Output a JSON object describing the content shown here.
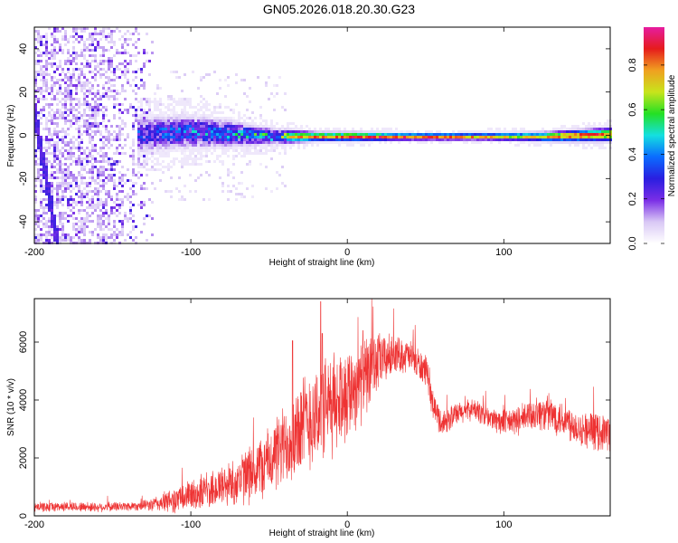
{
  "title": "GN05.2026.018.20.30.G23",
  "colors": {
    "snr_line": "#ee3333",
    "spectrogram_low": "#7a2ee6",
    "background": "#ffffff",
    "axis": "#000000"
  },
  "colorbar": {
    "label": "Normalized spectral amplitude",
    "range": [
      0,
      0.97
    ],
    "ticks": [
      0.0,
      0.2,
      0.4,
      0.6,
      0.8
    ],
    "tick_labels": [
      "0.0",
      "0.2",
      "0.4",
      "0.6",
      "0.8"
    ],
    "colormap": [
      "#ffffff",
      "#d9c8f5",
      "#7a2ee6",
      "#2a1ee0",
      "#0a6cff",
      "#14e0e0",
      "#24e024",
      "#c8e41c",
      "#f0a020",
      "#e61c1c",
      "#e61ca0"
    ]
  },
  "chart_data": [
    {
      "type": "heatmap",
      "name": "spectrogram",
      "xlabel": "Height of straight line (km)",
      "ylabel": "Frequency (Hz)",
      "xlim": [
        -200,
        168
      ],
      "ylim": [
        -50,
        50
      ],
      "xticks": [
        -200,
        -100,
        0,
        100
      ],
      "xtick_labels": [
        "-200",
        "-100",
        "0",
        "100"
      ],
      "yticks": [
        -40,
        -20,
        0,
        20,
        40
      ],
      "ytick_labels": [
        "-40",
        "-20",
        "0",
        "20",
        "40"
      ],
      "grid": false,
      "features": {
        "broadband_noise_x": [
          -200,
          -125
        ],
        "signal_band_centre_hz": [
          [
            -130,
            1
          ],
          [
            -110,
            2
          ],
          [
            -90,
            2
          ],
          [
            -70,
            1
          ],
          [
            -50,
            0
          ],
          [
            -30,
            0
          ],
          [
            -10,
            0
          ],
          [
            10,
            0
          ],
          [
            30,
            0
          ],
          [
            50,
            0
          ],
          [
            70,
            0
          ],
          [
            90,
            0
          ],
          [
            110,
            0
          ],
          [
            130,
            0
          ],
          [
            150,
            0.5
          ],
          [
            168,
            1
          ]
        ],
        "signal_band_halfwidth_hz": [
          [
            -130,
            8
          ],
          [
            -100,
            7
          ],
          [
            -80,
            6
          ],
          [
            -60,
            4
          ],
          [
            -40,
            3
          ],
          [
            -20,
            2
          ],
          [
            0,
            2
          ],
          [
            40,
            1.5
          ],
          [
            80,
            1.5
          ],
          [
            120,
            2
          ],
          [
            168,
            3
          ]
        ],
        "signal_peak_amplitude": [
          [
            -130,
            0.35
          ],
          [
            -110,
            0.4
          ],
          [
            -90,
            0.45
          ],
          [
            -70,
            0.5
          ],
          [
            -50,
            0.6
          ],
          [
            -30,
            0.8
          ],
          [
            -10,
            0.85
          ],
          [
            10,
            0.9
          ],
          [
            30,
            0.9
          ],
          [
            50,
            0.9
          ],
          [
            70,
            0.85
          ],
          [
            90,
            0.75
          ],
          [
            110,
            0.7
          ],
          [
            130,
            0.8
          ],
          [
            150,
            0.9
          ],
          [
            168,
            0.85
          ]
        ],
        "diagonal_trace": [
          [
            -210,
            50
          ],
          [
            -186,
            -50
          ]
        ]
      }
    },
    {
      "type": "line",
      "name": "snr",
      "xlabel": "Height of straight line (km)",
      "ylabel": "SNR (10 * v/v)",
      "xlim": [
        -200,
        168
      ],
      "ylim": [
        0,
        7500
      ],
      "xticks": [
        -200,
        -100,
        0,
        100
      ],
      "xtick_labels": [
        "-200",
        "-100",
        "0",
        "100"
      ],
      "yticks": [
        0,
        2000,
        4000,
        6000
      ],
      "ytick_labels": [
        "0",
        "2000",
        "4000",
        "6000"
      ],
      "grid": false,
      "series": [
        {
          "name": "SNR",
          "color": "#ee3333",
          "envelope": [
            [
              -200,
              300
            ],
            [
              -180,
              320
            ],
            [
              -160,
              300
            ],
            [
              -140,
              330
            ],
            [
              -125,
              380
            ],
            [
              -110,
              550
            ],
            [
              -90,
              850
            ],
            [
              -70,
              1200
            ],
            [
              -60,
              1500
            ],
            [
              -50,
              1900
            ],
            [
              -40,
              2400
            ],
            [
              -30,
              3100
            ],
            [
              -20,
              3500
            ],
            [
              -10,
              3800
            ],
            [
              0,
              4300
            ],
            [
              10,
              4700
            ],
            [
              20,
              5300
            ],
            [
              30,
              5600
            ],
            [
              40,
              5500
            ],
            [
              50,
              5000
            ],
            [
              55,
              3800
            ],
            [
              60,
              3200
            ],
            [
              70,
              3500
            ],
            [
              80,
              3700
            ],
            [
              90,
              3400
            ],
            [
              100,
              3200
            ],
            [
              110,
              3300
            ],
            [
              120,
              3550
            ],
            [
              130,
              3500
            ],
            [
              140,
              3300
            ],
            [
              150,
              3000
            ],
            [
              160,
              2900
            ],
            [
              168,
              2900
            ]
          ],
          "noise_amplitude": [
            [
              -200,
              180
            ],
            [
              -130,
              180
            ],
            [
              -110,
              500
            ],
            [
              -80,
              800
            ],
            [
              -50,
              1300
            ],
            [
              -30,
              1900
            ],
            [
              -10,
              2000
            ],
            [
              10,
              1600
            ],
            [
              30,
              700
            ],
            [
              50,
              600
            ],
            [
              60,
              500
            ],
            [
              80,
              400
            ],
            [
              100,
              500
            ],
            [
              130,
              700
            ],
            [
              168,
              700
            ]
          ],
          "spikes": [
            [
              -17,
              7400
            ],
            [
              -16,
              6300
            ],
            [
              10,
              6400
            ],
            [
              -35,
              6050
            ]
          ]
        }
      ]
    }
  ]
}
